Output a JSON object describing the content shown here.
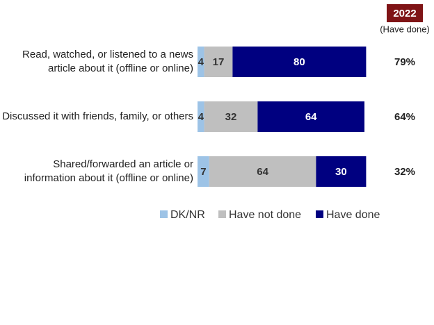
{
  "chart_data": {
    "type": "stacked-bar-horizontal",
    "categories": [
      "Read, watched, or listened to a news article about it (offline or online)",
      "Discussed it with friends, family, or others",
      "Shared/forwarded an article or information about it (offline or online)"
    ],
    "series": [
      {
        "name": "DK/NR",
        "color": "#9dc3e6",
        "values": [
          4,
          4,
          7
        ]
      },
      {
        "name": "Have not done",
        "color": "#bfbfbf",
        "values": [
          17,
          32,
          64
        ]
      },
      {
        "name": "Have done",
        "color": "#000080",
        "values": [
          80,
          64,
          30
        ]
      }
    ],
    "annotation_column": {
      "title": "2022",
      "subtitle": "(Have done)",
      "values": [
        79,
        64,
        32
      ],
      "value_labels": [
        "79%",
        "64%",
        "32%"
      ]
    }
  }
}
